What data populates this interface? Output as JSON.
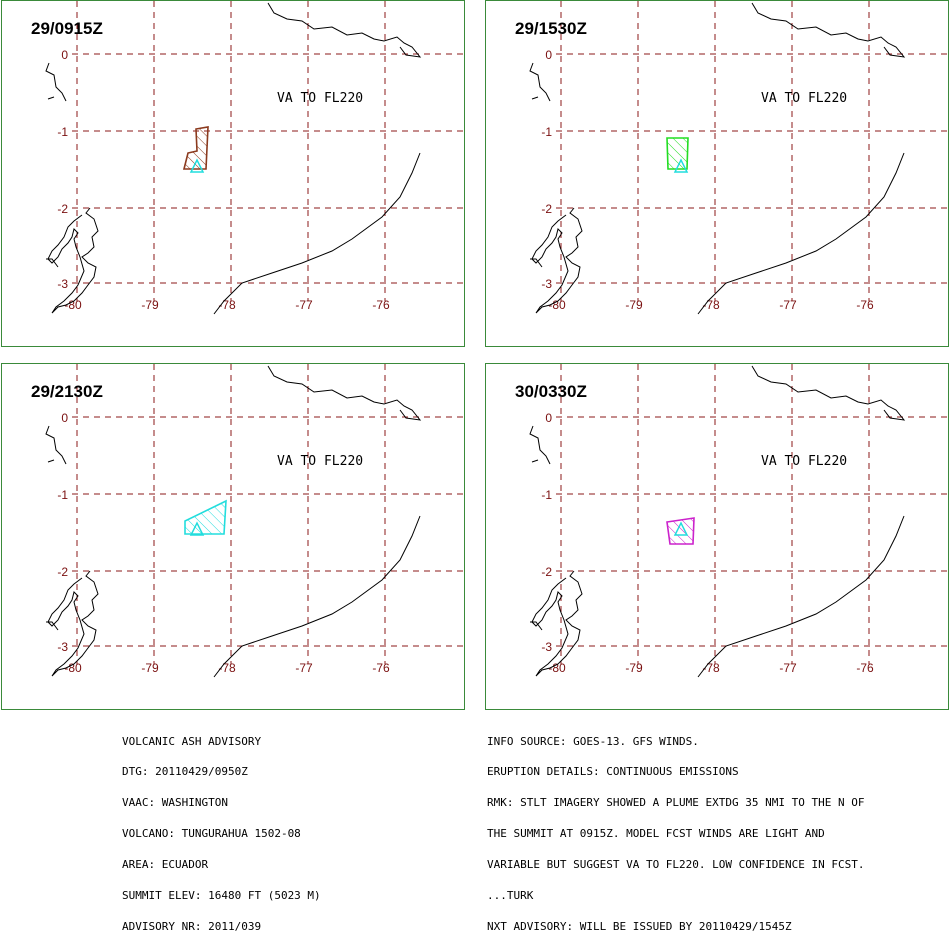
{
  "panels": [
    {
      "time": "29/0915Z",
      "va_text": "VA TO FL220",
      "plume_color": "#8B3A1E",
      "plume": "p1"
    },
    {
      "time": "29/1530Z",
      "va_text": "VA TO FL220",
      "plume_color": "#22DD22",
      "plume": "p2"
    },
    {
      "time": "29/2130Z",
      "va_text": "VA TO FL220",
      "plume_color": "#22DDDD",
      "plume": "p3"
    },
    {
      "time": "30/0330Z",
      "va_text": "VA TO FL220",
      "plume_color": "#CC22CC",
      "plume": "p4"
    }
  ],
  "map": {
    "lat_labels": [
      "0",
      "-1",
      "-2",
      "-3"
    ],
    "lon_labels": [
      "-80",
      "-79",
      "-78",
      "-77",
      "-76"
    ],
    "grid_color": "#8B1A1A",
    "volcano_color": "#22DDDD",
    "coast_color": "#000000"
  },
  "advisory": {
    "left_lines": [
      "VOLCANIC ASH ADVISORY",
      "DTG: 20110429/0950Z",
      "VAAC: WASHINGTON",
      "VOLCANO: TUNGURAHUA 1502-08",
      "AREA: ECUADOR",
      "SUMMIT ELEV: 16480 FT (5023 M)",
      "ADVISORY NR: 2011/039"
    ],
    "right_lines": [
      "INFO SOURCE: GOES-13. GFS WINDS.",
      "ERUPTION DETAILS: CONTINUOUS EMISSIONS",
      "RMK: STLT IMAGERY SHOWED A PLUME EXTDG 35 NMI TO THE N OF",
      "THE SUMMIT AT 0915Z. MODEL FCST WINDS ARE LIGHT AND",
      "VARIABLE BUT SUGGEST VA TO FL220. LOW CONFIDENCE IN FCST.",
      "...TURK",
      "NXT ADVISORY: WILL BE ISSUED BY 20110429/1545Z"
    ]
  }
}
